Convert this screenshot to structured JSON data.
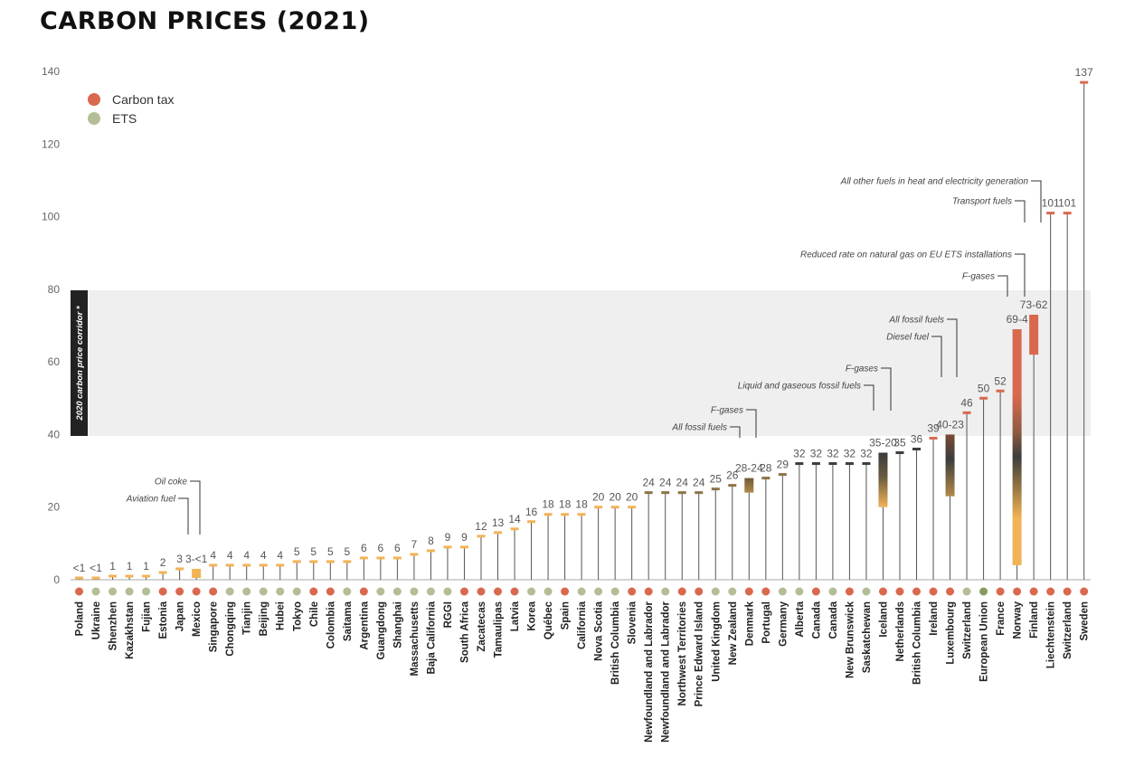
{
  "title": "CARBON PRICES (2021)",
  "legend": [
    {
      "label": "Carbon tax",
      "color": "#d9694e"
    },
    {
      "label": "ETS",
      "color": "#b3be96"
    }
  ],
  "corridor_label": "2020 carbon price corridor *",
  "colors": {
    "carbon_tax": "#d9694e",
    "ets": "#b3be96",
    "eu_ets": "#889b5d",
    "low": "#f2b356",
    "mid": "#8b7346",
    "high": "#3d3d3d",
    "top": "#d9694e",
    "corridor": "#efefef"
  },
  "chart_data": {
    "type": "bar",
    "title": "CARBON PRICES (2021)",
    "ylim": [
      0,
      140
    ],
    "yticks": [
      0,
      20,
      40,
      60,
      80,
      100,
      120,
      140
    ],
    "corridor": [
      40,
      80
    ],
    "categories": [
      "Poland",
      "Ukraine",
      "Shenzhen",
      "Kazakhstan",
      "Fujian",
      "Estonia",
      "Japan",
      "Mexico",
      "Singapore",
      "Chongqing",
      "Tianjin",
      "Beijing",
      "Hubei",
      "Tokyo",
      "Chile",
      "Colombia",
      "Saitama",
      "Argentina",
      "Guangdong",
      "Shanghai",
      "Massachusetts",
      "Baja California",
      "RGGI",
      "South Africa",
      "Zacatecas",
      "Tamaulipas",
      "Latvia",
      "Korea",
      "Québec",
      "Spain",
      "California",
      "Nova Scotia",
      "British Columbia",
      "Slovenia",
      "Newfoundland and Labrador",
      "Newfoundland and Labrador",
      "Northwest Territories",
      "Prince Edward Island",
      "United Kingdom",
      "New Zealand",
      "Denmark",
      "Portugal",
      "Germany",
      "Alberta",
      "Canada",
      "Canada",
      "New Brunswick",
      "Saskatchewan",
      "Iceland",
      "Netherlands",
      "British Columbia",
      "Ireland",
      "Luxembourg",
      "Switzerland",
      "European Union",
      "France",
      "Norway",
      "Finland",
      "Liechtenstein",
      "Switzerland",
      "Sweden"
    ],
    "types": [
      "tax",
      "ets",
      "ets",
      "ets",
      "ets",
      "tax",
      "tax",
      "tax",
      "tax",
      "ets",
      "ets",
      "ets",
      "ets",
      "ets",
      "tax",
      "tax",
      "ets",
      "tax",
      "ets",
      "ets",
      "ets",
      "ets",
      "ets",
      "tax",
      "tax",
      "tax",
      "tax",
      "ets",
      "ets",
      "tax",
      "ets",
      "ets",
      "ets",
      "tax",
      "tax",
      "ets",
      "tax",
      "tax",
      "ets",
      "ets",
      "tax",
      "tax",
      "ets",
      "ets",
      "tax",
      "ets",
      "tax",
      "ets",
      "tax",
      "tax",
      "tax",
      "tax",
      "tax",
      "ets",
      "eu_ets",
      "tax",
      "tax",
      "tax",
      "tax",
      "tax",
      "tax"
    ],
    "ranges": [
      [
        0.5,
        0.5
      ],
      [
        0.5,
        0.5
      ],
      [
        1,
        1
      ],
      [
        1,
        1
      ],
      [
        1,
        1
      ],
      [
        2,
        2
      ],
      [
        3,
        3
      ],
      [
        0.5,
        3
      ],
      [
        4,
        4
      ],
      [
        4,
        4
      ],
      [
        4,
        4
      ],
      [
        4,
        4
      ],
      [
        4,
        4
      ],
      [
        5,
        5
      ],
      [
        5,
        5
      ],
      [
        5,
        5
      ],
      [
        5,
        5
      ],
      [
        6,
        6
      ],
      [
        6,
        6
      ],
      [
        6,
        6
      ],
      [
        7,
        7
      ],
      [
        8,
        8
      ],
      [
        9,
        9
      ],
      [
        9,
        9
      ],
      [
        12,
        12
      ],
      [
        13,
        13
      ],
      [
        14,
        14
      ],
      [
        16,
        16
      ],
      [
        18,
        18
      ],
      [
        18,
        18
      ],
      [
        18,
        18
      ],
      [
        20,
        20
      ],
      [
        20,
        20
      ],
      [
        20,
        20
      ],
      [
        24,
        24
      ],
      [
        24,
        24
      ],
      [
        24,
        24
      ],
      [
        24,
        24
      ],
      [
        25,
        25
      ],
      [
        26,
        26
      ],
      [
        24,
        28
      ],
      [
        28,
        28
      ],
      [
        29,
        29
      ],
      [
        32,
        32
      ],
      [
        32,
        32
      ],
      [
        32,
        32
      ],
      [
        32,
        32
      ],
      [
        32,
        32
      ],
      [
        20,
        35
      ],
      [
        35,
        35
      ],
      [
        36,
        36
      ],
      [
        39,
        39
      ],
      [
        23,
        40
      ],
      [
        46,
        46
      ],
      [
        50,
        50
      ],
      [
        52,
        52
      ],
      [
        4,
        69
      ],
      [
        62,
        73
      ],
      [
        101,
        101
      ],
      [
        101,
        101
      ],
      [
        137,
        137
      ]
    ],
    "value_labels": [
      "<1",
      "<1",
      "1",
      "1",
      "1",
      "2",
      "3",
      "3-<1",
      "4",
      "4",
      "4",
      "4",
      "4",
      "5",
      "5",
      "5",
      "5",
      "6",
      "6",
      "6",
      "7",
      "8",
      "9",
      "9",
      "12",
      "13",
      "14",
      "16",
      "18",
      "18",
      "18",
      "20",
      "20",
      "20",
      "24",
      "24",
      "24",
      "24",
      "25",
      "26",
      "28-24",
      "28",
      "29",
      "32",
      "32",
      "32",
      "32",
      "32",
      "35-20",
      "35",
      "36",
      "39",
      "40-23",
      "46",
      "50",
      "52",
      "69-4",
      "73-62",
      "101",
      "101",
      "137"
    ],
    "annotations": [
      {
        "text": "Oil coke",
        "category_index": 7,
        "value": 3
      },
      {
        "text": "Aviation fuel",
        "category_index": 7,
        "value": 0.5
      },
      {
        "text": "All fossil fuels",
        "category_index": 40,
        "value": 24
      },
      {
        "text": "F-gases",
        "category_index": 40,
        "value": 28
      },
      {
        "text": "Liquid and gaseous fossil fuels",
        "category_index": 48,
        "value": 35
      },
      {
        "text": "F-gases",
        "category_index": 48,
        "value": 20
      },
      {
        "text": "Diesel fuel",
        "category_index": 52,
        "value": 23
      },
      {
        "text": "All fossil fuels",
        "category_index": 52,
        "value": 40
      },
      {
        "text": "F-gases",
        "category_index": 56,
        "value": 69
      },
      {
        "text": "Reduced rate on natural gas on EU ETS installations",
        "category_index": 56,
        "value": 4
      },
      {
        "text": "Transport fuels",
        "category_index": 57,
        "value": 73
      },
      {
        "text": "All other fuels in heat and electricity generation",
        "category_index": 57,
        "value": 62
      }
    ]
  }
}
